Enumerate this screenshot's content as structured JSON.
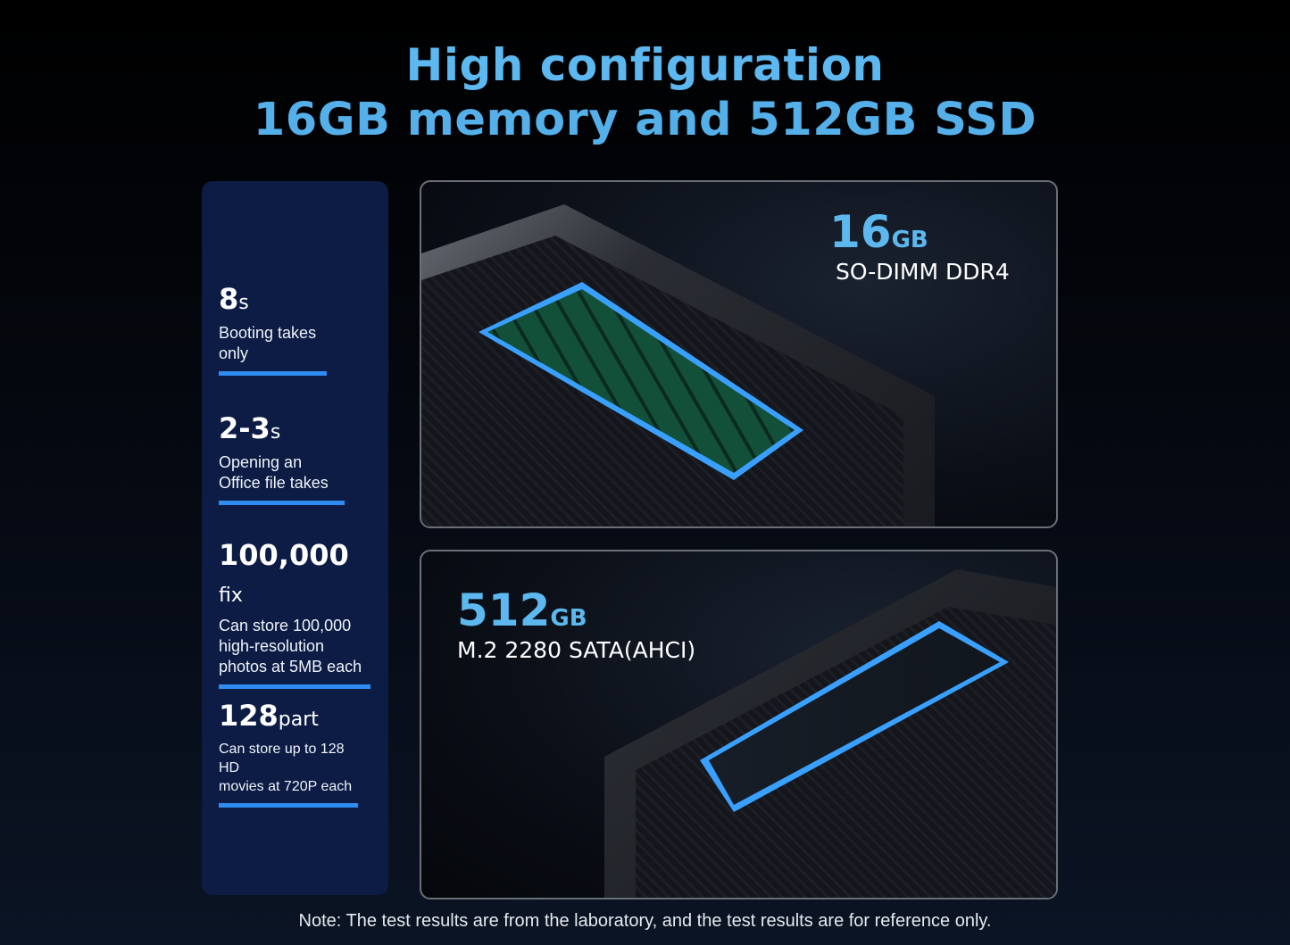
{
  "header": {
    "line1": "High configuration",
    "line2": "16GB memory and 512GB SSD"
  },
  "stats": [
    {
      "value": "8",
      "unit": "s",
      "desc1": "Booting takes",
      "desc2": "only"
    },
    {
      "value": "2-3",
      "unit": "s",
      "desc1": "Opening an",
      "desc2": "Office file takes"
    },
    {
      "value": "100,000",
      "unit": " fix",
      "desc1": "Can store 100,000",
      "desc2": "high-resolution",
      "desc3": "photos at 5MB each"
    },
    {
      "value": "128",
      "unit": "part",
      "desc1": "Can store up to 128 HD",
      "desc2": "movies  at 720P each"
    }
  ],
  "memory": {
    "value": "16",
    "unit": "GB",
    "type": "SO-DIMM DDR4"
  },
  "storage": {
    "value": "512",
    "unit": "GB",
    "type": "M.2 2280 SATA(AHCI)"
  },
  "note": "Note: The test results are from the  laboratory, and the test results are for reference only.",
  "colors": {
    "accent": "#5cb8ee",
    "panel": "#0c1c44",
    "bar": "#2f8cf0"
  }
}
